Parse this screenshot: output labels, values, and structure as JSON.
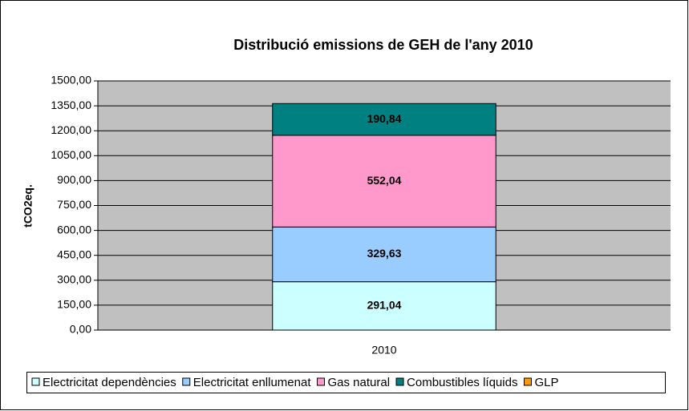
{
  "chart_data": {
    "type": "stacked_bar",
    "title": "Distribució emissions de GEH de l'any 2010",
    "y_label": "tCO2eq.",
    "categories": [
      "2010"
    ],
    "series": [
      {
        "name": "Electricitat dependències",
        "color": "#ccffff",
        "values": [
          291.04
        ],
        "value_labels": [
          "291,04"
        ]
      },
      {
        "name": "Electricitat enllumenat",
        "color": "#99ccff",
        "values": [
          329.63
        ],
        "value_labels": [
          "329,63"
        ]
      },
      {
        "name": "Gas natural",
        "color": "#ff99cc",
        "values": [
          552.04
        ],
        "value_labels": [
          "552,04"
        ]
      },
      {
        "name": "Combustibles líquids",
        "color": "#008080",
        "values": [
          190.84
        ],
        "value_labels": [
          "190,84"
        ]
      },
      {
        "name": "GLP",
        "color": "#ff9900",
        "values": [
          0
        ]
      }
    ],
    "ylim": [
      0,
      1500
    ],
    "yticks": [
      {
        "value": 0,
        "label": "0,00"
      },
      {
        "value": 150,
        "label": "150,00"
      },
      {
        "value": 300,
        "label": "300,00"
      },
      {
        "value": 450,
        "label": "450,00"
      },
      {
        "value": 600,
        "label": "600,00"
      },
      {
        "value": 750,
        "label": "750,00"
      },
      {
        "value": 900,
        "label": "900,00"
      },
      {
        "value": 1050,
        "label": "1050,00"
      },
      {
        "value": 1200,
        "label": "1200,00"
      },
      {
        "value": 1350,
        "label": "1350,00"
      },
      {
        "value": 1500,
        "label": "1500,00"
      }
    ],
    "grid": true,
    "legend": "bottom"
  }
}
